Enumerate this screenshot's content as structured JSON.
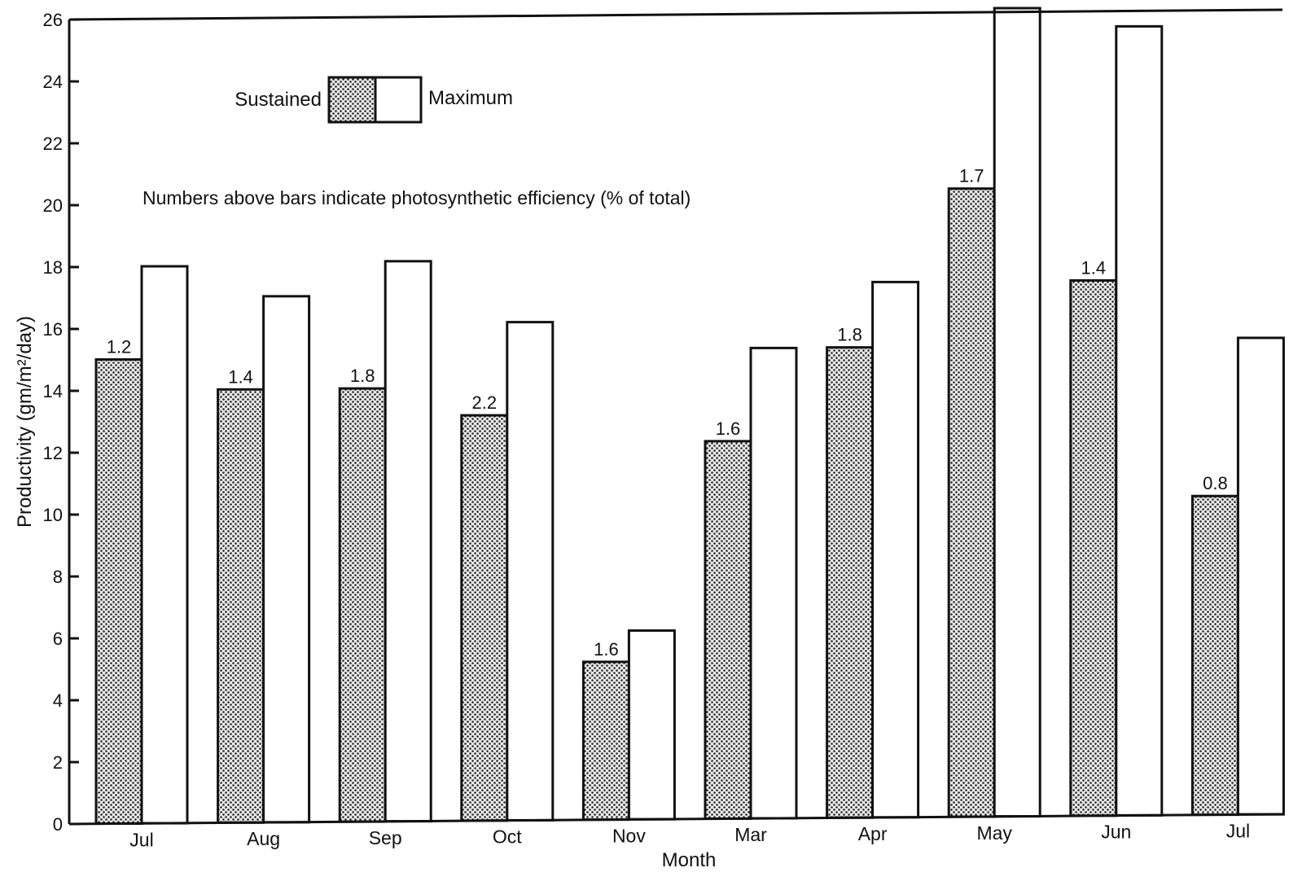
{
  "chart_data": {
    "type": "bar",
    "xlabel": "Month",
    "ylabel": "Productivity (gm/m²/day)",
    "ylim": [
      0,
      26
    ],
    "yticks": [
      0,
      2,
      4,
      6,
      8,
      10,
      12,
      14,
      16,
      18,
      20,
      22,
      24,
      26
    ],
    "grid": false,
    "legend_position": "top-left",
    "note": "Numbers above bars indicate photosynthetic efficiency (% of total)",
    "categories": [
      "Jul",
      "Aug",
      "Sep",
      "Oct",
      "Nov",
      "Mar",
      "Apr",
      "May",
      "Jun",
      "Jul"
    ],
    "series": [
      {
        "name": "Sustained",
        "pattern": "stippled",
        "color": "#111111",
        "values": [
          15.0,
          14.0,
          14.0,
          13.1,
          5.1,
          12.2,
          15.2,
          20.3,
          17.3,
          10.3
        ],
        "labels": [
          "1.2",
          "1.4",
          "1.8",
          "2.2",
          "1.6",
          "1.6",
          "1.8",
          "1.7",
          "1.4",
          "0.8"
        ]
      },
      {
        "name": "Maximum",
        "pattern": "open",
        "color": "#ffffff",
        "values": [
          18.0,
          17.0,
          18.1,
          16.1,
          6.1,
          15.2,
          17.3,
          26.5,
          25.5,
          15.4
        ]
      }
    ]
  }
}
